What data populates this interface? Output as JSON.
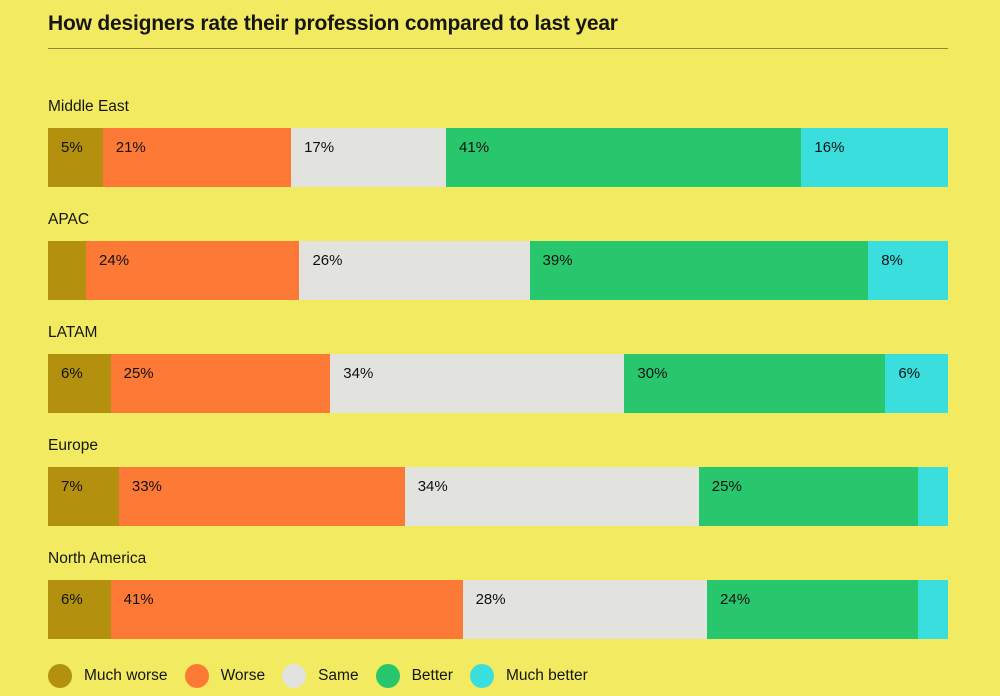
{
  "page": {
    "background_color": "#f2ea60",
    "rule_color": "#8e8838"
  },
  "header": {
    "title": "How designers rate their profession compared to last year"
  },
  "chart_data": {
    "type": "bar",
    "variant": "horizontal-stacked-percentage",
    "title": "How designers rate their profession compared to last year",
    "legend_position": "bottom",
    "grid": false,
    "categories": [
      "Middle East",
      "APAC",
      "LATAM",
      "Europe",
      "North America"
    ],
    "series": [
      {
        "name": "Much worse",
        "color": "#b3900d",
        "values": [
          5,
          3,
          6,
          7,
          6
        ]
      },
      {
        "name": "Worse",
        "color": "#fc7a36",
        "values": [
          21,
          24,
          25,
          33,
          41
        ]
      },
      {
        "name": "Same",
        "color": "#e2e2df",
        "values": [
          17,
          26,
          34,
          34,
          28
        ]
      },
      {
        "name": "Better",
        "color": "#28c76d",
        "values": [
          41,
          39,
          30,
          25,
          24
        ]
      },
      {
        "name": "Much better",
        "color": "#3adedd",
        "values": [
          16,
          8,
          6,
          2,
          2
        ]
      }
    ],
    "segment_labels": [
      [
        "5%",
        "21%",
        "17%",
        "41%",
        "16%"
      ],
      [
        "",
        "24%",
        "26%",
        "39%",
        "8%"
      ],
      [
        "6%",
        "25%",
        "34%",
        "30%",
        "6%"
      ],
      [
        "7%",
        "33%",
        "34%",
        "25%",
        ""
      ],
      [
        "6%",
        "41%",
        "28%",
        "24%",
        ""
      ]
    ]
  }
}
